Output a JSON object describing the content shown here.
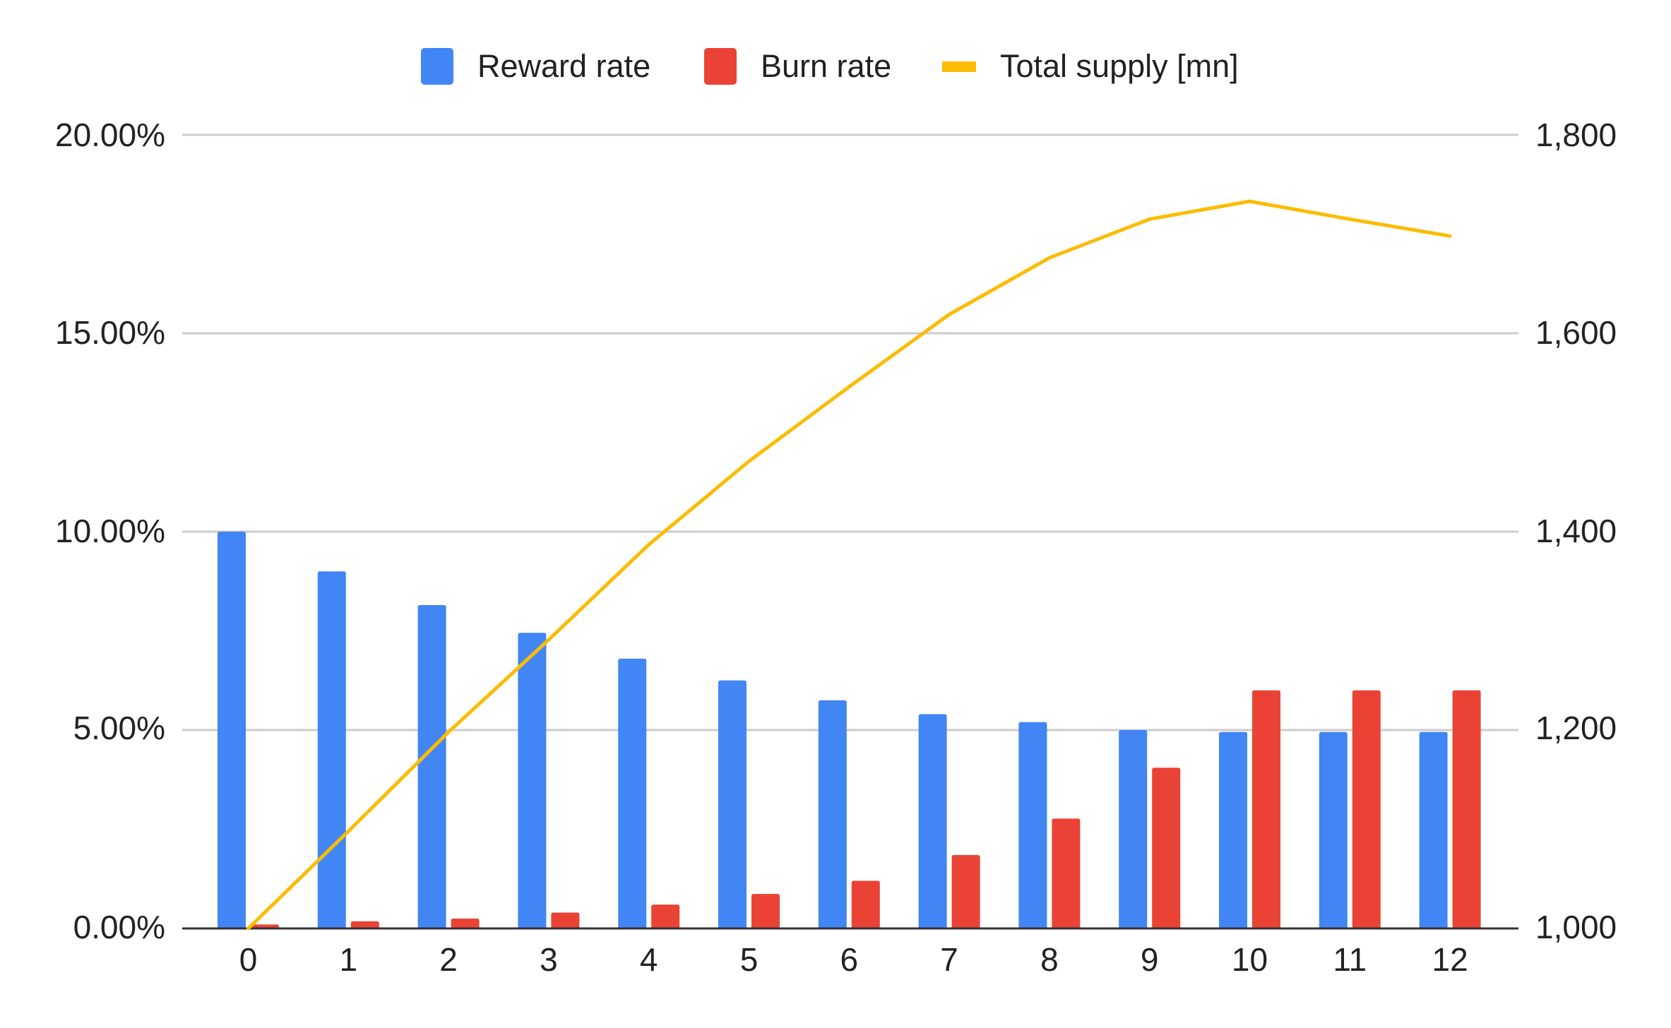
{
  "chart_data": {
    "type": "bar",
    "title": "",
    "xlabel": "",
    "ylabel": "",
    "categories": [
      "0",
      "1",
      "2",
      "3",
      "4",
      "5",
      "6",
      "7",
      "8",
      "9",
      "10",
      "11",
      "12"
    ],
    "series": [
      {
        "name": "Reward rate",
        "type": "bar",
        "axis": "left",
        "color": "#4285F4",
        "values": [
          10.0,
          9.0,
          8.15,
          7.45,
          6.8,
          6.25,
          5.75,
          5.4,
          5.2,
          5.0,
          4.95,
          4.95,
          4.95
        ],
        "unit": "%"
      },
      {
        "name": "Burn rate",
        "type": "bar",
        "axis": "left",
        "color": "#EA4335",
        "values": [
          0.1,
          0.18,
          0.25,
          0.4,
          0.6,
          0.87,
          1.2,
          1.85,
          2.77,
          4.05,
          6.0,
          6.0,
          6.0
        ],
        "unit": "%"
      },
      {
        "name": "Total supply [mn]",
        "type": "line",
        "axis": "right",
        "color": "#FBBC04",
        "values": [
          1000,
          1098,
          1198,
          1291,
          1387,
          1471,
          1546,
          1619,
          1676,
          1715,
          1733,
          1715,
          1698
        ]
      }
    ],
    "left_axis": {
      "ylim": [
        0,
        20
      ],
      "ticks": [
        0,
        5,
        10,
        15,
        20
      ],
      "tick_labels": [
        "0.00%",
        "5.00%",
        "10.00%",
        "15.00%",
        "20.00%"
      ]
    },
    "right_axis": {
      "ylim": [
        1000,
        1800
      ],
      "ticks": [
        1000,
        1200,
        1400,
        1600,
        1800
      ],
      "tick_labels": [
        "1,000",
        "1,200",
        "1,400",
        "1,600",
        "1,800"
      ]
    },
    "grid": true,
    "legend_position": "top"
  },
  "legend": {
    "items": [
      {
        "label": "Reward rate",
        "color": "#4285F4",
        "shape": "box"
      },
      {
        "label": "Burn rate",
        "color": "#EA4335",
        "shape": "box"
      },
      {
        "label": "Total supply [mn]",
        "color": "#FBBC04",
        "shape": "dash"
      }
    ]
  },
  "colors": {
    "gridline": "#CCCCCC",
    "axis": "#333333",
    "text": "#222222"
  }
}
